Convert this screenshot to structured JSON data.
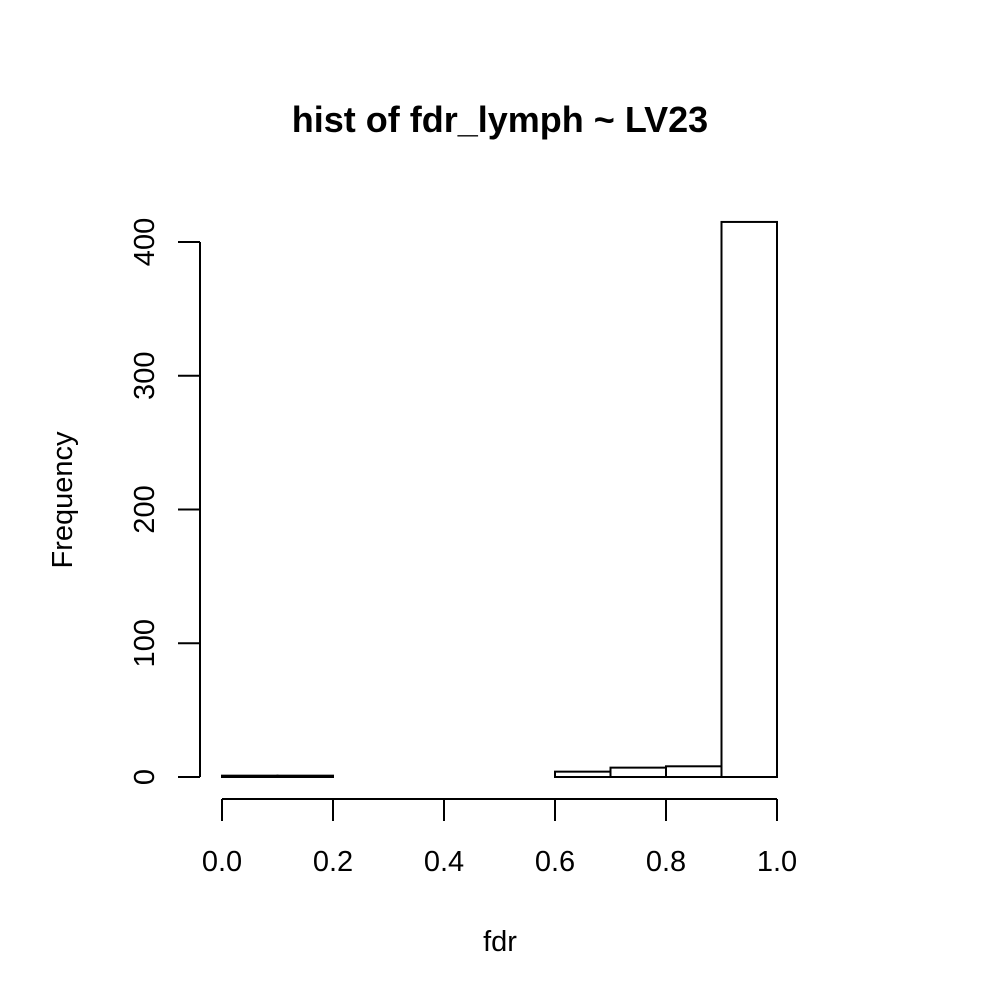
{
  "chart_data": {
    "type": "bar",
    "title": "hist of fdr_lymph ~ LV23",
    "xlabel": "fdr",
    "ylabel": "Frequency",
    "bins": [
      {
        "x0": 0.0,
        "x1": 0.1,
        "count": 1
      },
      {
        "x0": 0.1,
        "x1": 0.2,
        "count": 1
      },
      {
        "x0": 0.2,
        "x1": 0.3,
        "count": 0
      },
      {
        "x0": 0.3,
        "x1": 0.4,
        "count": 0
      },
      {
        "x0": 0.4,
        "x1": 0.5,
        "count": 0
      },
      {
        "x0": 0.5,
        "x1": 0.6,
        "count": 0
      },
      {
        "x0": 0.6,
        "x1": 0.7,
        "count": 4
      },
      {
        "x0": 0.7,
        "x1": 0.8,
        "count": 7
      },
      {
        "x0": 0.8,
        "x1": 0.9,
        "count": 8
      },
      {
        "x0": 0.9,
        "x1": 1.0,
        "count": 415
      }
    ],
    "x_ticks": [
      0.0,
      0.2,
      0.4,
      0.6,
      0.8,
      1.0
    ],
    "x_tick_labels": [
      "0.0",
      "0.2",
      "0.4",
      "0.6",
      "0.8",
      "1.0"
    ],
    "y_ticks": [
      0,
      100,
      200,
      300,
      400
    ],
    "y_tick_labels": [
      "0",
      "100",
      "200",
      "300",
      "400"
    ],
    "xlim": [
      0,
      1
    ],
    "ylim": [
      0,
      415
    ],
    "grid": false,
    "legend": "none"
  }
}
